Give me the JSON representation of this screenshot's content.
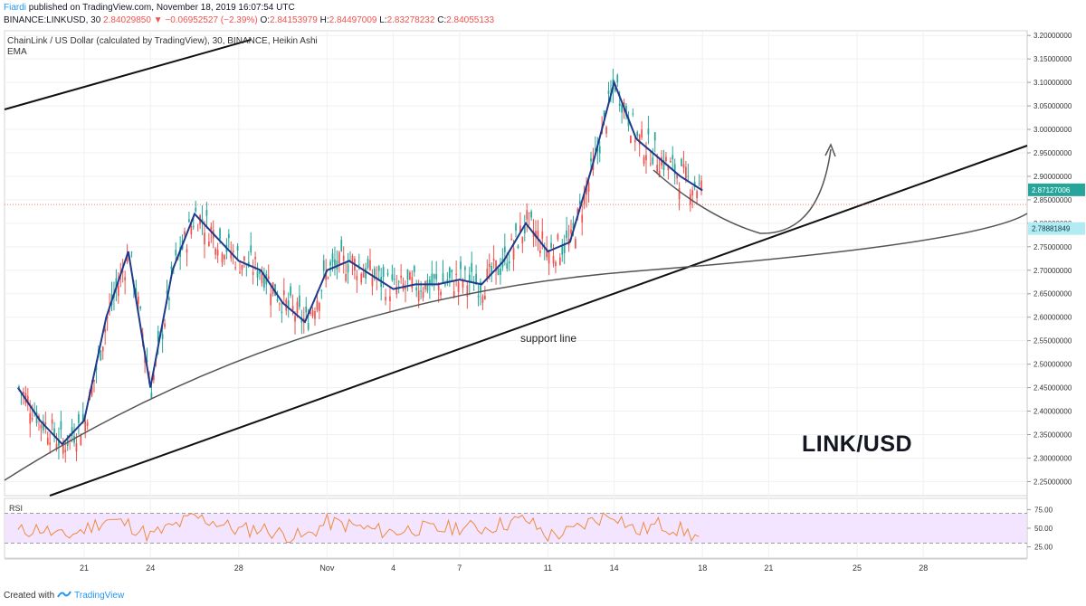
{
  "header": {
    "author": "Fiardi",
    "published_text": "published on TradingView.com, November 18, 2019 16:07:54 UTC",
    "symbol": "BINANCE:LINKUSD, 30",
    "last_price": "2.84029850",
    "change": "▼ −0.06952527 (−2.39%)",
    "o_label": "O:",
    "o_value": "2.84153979",
    "h_label": "H:",
    "h_value": "2.84497009",
    "l_label": "L:",
    "l_value": "2.83278232",
    "c_label": "C:",
    "c_value": "2.84055133"
  },
  "legend": {
    "title": "ChainLink / US Dollar (calculated by TradingView), 30, BINANCE, Heikin Ashi",
    "indicator": "EMA"
  },
  "annotations": {
    "support": "support line",
    "pair": "LINK/USD"
  },
  "rsi": {
    "label": "RSI",
    "levels": [
      "75.00",
      "50.00",
      "25.00"
    ]
  },
  "footer": {
    "created_with": "Created with",
    "brand": "TradingView"
  },
  "colors": {
    "bull": "#26a69a",
    "bear": "#ef5350",
    "ema": "#1e3a8a",
    "price_badge": "#26a69a",
    "ema_badge": "#b2ebf2",
    "rsi_line": "#f08a3e",
    "rsi_band": "#f3e5ff"
  },
  "chart_data": {
    "type": "line",
    "title": "ChainLink / US Dollar (calculated by TradingView), 30, BINANCE, Heikin Ashi",
    "ylim": [
      2.22,
      3.21
    ],
    "y_ticks": [
      "3.20000000",
      "3.15000000",
      "3.10000000",
      "3.05000000",
      "3.00000000",
      "2.95000000",
      "2.90000000",
      "2.85000000",
      "2.80000000",
      "2.75000000",
      "2.70000000",
      "2.65000000",
      "2.60000000",
      "2.55000000",
      "2.50000000",
      "2.45000000",
      "2.40000000",
      "2.35000000",
      "2.30000000",
      "2.25000000"
    ],
    "x_ticks": [
      "21",
      "24",
      "28",
      "Nov",
      "4",
      "7",
      "11",
      "14",
      "18",
      "21",
      "25",
      "28"
    ],
    "price_badges": [
      "2.87127006",
      "2.78881849"
    ],
    "series": [
      {
        "name": "EMA",
        "x": [
          "Oct 18",
          "Oct 19",
          "Oct 20",
          "Oct 21",
          "Oct 22",
          "Oct 23",
          "Oct 24",
          "Oct 25",
          "Oct 26",
          "Oct 27",
          "Oct 28",
          "Oct 29",
          "Oct 30",
          "Oct 31",
          "Nov 1",
          "Nov 2",
          "Nov 3",
          "Nov 4",
          "Nov 5",
          "Nov 6",
          "Nov 7",
          "Nov 8",
          "Nov 9",
          "Nov 10",
          "Nov 11",
          "Nov 12",
          "Nov 13",
          "Nov 14",
          "Nov 15",
          "Nov 16",
          "Nov 17",
          "Nov 18"
        ],
        "values": [
          2.45,
          2.38,
          2.33,
          2.38,
          2.6,
          2.74,
          2.45,
          2.7,
          2.82,
          2.77,
          2.72,
          2.7,
          2.63,
          2.59,
          2.7,
          2.72,
          2.69,
          2.66,
          2.67,
          2.67,
          2.68,
          2.67,
          2.72,
          2.8,
          2.74,
          2.76,
          2.92,
          3.1,
          2.98,
          2.94,
          2.9,
          2.87
        ]
      }
    ],
    "rsi_values": [
      45,
      50,
      38,
      48,
      62,
      55,
      40,
      52,
      65,
      58,
      47,
      50,
      42,
      38,
      58,
      54,
      48,
      45,
      50,
      48,
      52,
      50,
      56,
      62,
      40,
      45,
      60,
      70,
      45,
      55,
      48,
      35
    ]
  }
}
